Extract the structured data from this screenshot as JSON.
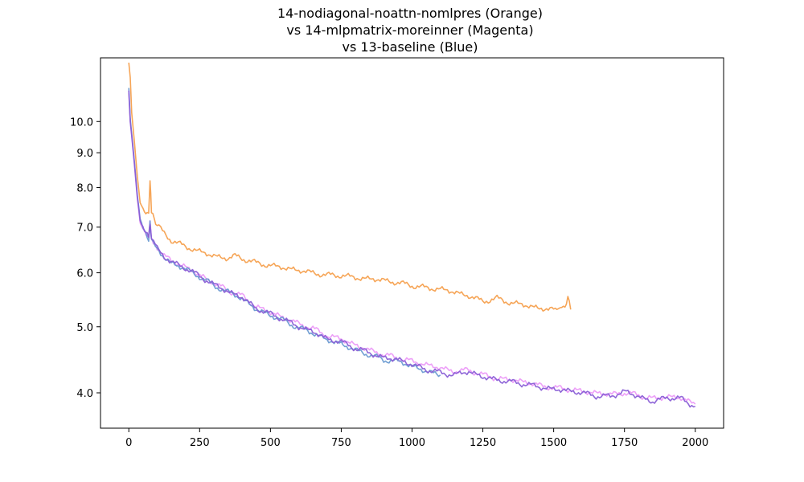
{
  "chart_data": {
    "type": "line",
    "title_lines": [
      "14-nodiagonal-noattn-nomlpres (Orange)",
      "vs 14-mlpmatrix-moreinner (Magenta)",
      "vs 13-baseline (Blue)"
    ],
    "xlabel": "",
    "ylabel": "",
    "xlim": [
      -100,
      2100
    ],
    "ylim": [
      3.55,
      12.4
    ],
    "yscale": "log",
    "grid": false,
    "x_ticks": [
      0,
      250,
      500,
      750,
      1000,
      1250,
      1500,
      1750,
      2000
    ],
    "y_ticks": [
      4.0,
      5.0,
      6.0,
      7.0,
      8.0,
      9.0,
      10.0
    ],
    "y_tick_labels": [
      "4.0",
      "5.0",
      "6.0",
      "7.0",
      "8.0",
      "9.0",
      "10.0"
    ],
    "series": [
      {
        "color": "#f59b45",
        "opacity": 0.9,
        "x": [
          0,
          5,
          10,
          20,
          30,
          40,
          50,
          60,
          70,
          75,
          80,
          90,
          100,
          125,
          150,
          200,
          250,
          300,
          350,
          375,
          400,
          425,
          450,
          500,
          550,
          600,
          650,
          700,
          750,
          800,
          850,
          900,
          950,
          1000,
          1050,
          1100,
          1150,
          1200,
          1250,
          1300,
          1350,
          1400,
          1450,
          1500,
          1540,
          1550,
          1560
        ],
        "y": [
          12.2,
          11.6,
          10.3,
          9.3,
          8.3,
          7.6,
          7.45,
          7.4,
          7.3,
          8.2,
          7.35,
          7.2,
          7.05,
          6.85,
          6.7,
          6.55,
          6.45,
          6.35,
          6.3,
          6.35,
          6.3,
          6.25,
          6.2,
          6.15,
          6.1,
          6.05,
          6.0,
          5.95,
          5.95,
          5.9,
          5.88,
          5.85,
          5.8,
          5.75,
          5.7,
          5.68,
          5.62,
          5.55,
          5.45,
          5.5,
          5.42,
          5.38,
          5.32,
          5.3,
          5.35,
          5.55,
          5.3
        ]
      },
      {
        "color": "#e678f5",
        "opacity": 0.7,
        "x": [
          0,
          5,
          10,
          20,
          30,
          40,
          50,
          60,
          70,
          75,
          80,
          100,
          125,
          150,
          200,
          250,
          300,
          350,
          375,
          400,
          425,
          450,
          500,
          550,
          600,
          650,
          700,
          750,
          800,
          850,
          900,
          950,
          1000,
          1050,
          1100,
          1150,
          1200,
          1250,
          1300,
          1350,
          1400,
          1450,
          1500,
          1550,
          1600,
          1650,
          1700,
          1750,
          1800,
          1850,
          1900,
          1950,
          2000
        ],
        "y": [
          11.0,
          10.0,
          9.5,
          8.6,
          7.7,
          7.1,
          6.95,
          6.85,
          6.8,
          7.1,
          6.75,
          6.55,
          6.35,
          6.25,
          6.12,
          5.95,
          5.8,
          5.65,
          5.6,
          5.55,
          5.45,
          5.35,
          5.25,
          5.15,
          5.05,
          4.97,
          4.85,
          4.8,
          4.7,
          4.62,
          4.55,
          4.5,
          4.45,
          4.4,
          4.35,
          4.3,
          4.32,
          4.25,
          4.2,
          4.18,
          4.15,
          4.1,
          4.07,
          4.05,
          4.02,
          4.0,
          3.98,
          4.0,
          3.97,
          3.92,
          3.95,
          3.93,
          3.85
        ]
      },
      {
        "color": "#5b8fcc",
        "opacity": 0.85,
        "x": [
          0,
          5,
          10,
          20,
          30,
          40,
          50,
          60,
          70,
          75,
          80,
          100,
          125,
          150,
          200,
          250,
          300,
          350,
          375,
          400,
          425,
          450,
          500,
          550,
          600,
          650,
          700,
          750,
          800,
          850,
          900,
          950,
          1000,
          1050,
          1100
        ],
        "y": [
          11.2,
          10.1,
          9.6,
          8.7,
          7.8,
          7.2,
          7.0,
          6.85,
          6.75,
          7.15,
          6.7,
          6.5,
          6.32,
          6.2,
          6.08,
          5.92,
          5.75,
          5.62,
          5.57,
          5.5,
          5.4,
          5.3,
          5.2,
          5.1,
          4.98,
          4.9,
          4.78,
          4.72,
          4.62,
          4.55,
          4.47,
          4.45,
          4.38,
          4.3,
          4.25
        ]
      },
      {
        "color": "#8a5fd6",
        "opacity": 0.95,
        "x": [
          0,
          5,
          10,
          20,
          30,
          40,
          50,
          60,
          70,
          75,
          80,
          100,
          125,
          150,
          200,
          250,
          300,
          350,
          375,
          400,
          425,
          450,
          500,
          550,
          600,
          650,
          700,
          750,
          800,
          850,
          900,
          950,
          1000,
          1050,
          1100,
          1150,
          1200,
          1250,
          1300,
          1350,
          1400,
          1450,
          1500,
          1550,
          1600,
          1650,
          1700,
          1750,
          1800,
          1850,
          1900,
          1950,
          2000
        ],
        "y": [
          11.1,
          10.0,
          9.55,
          8.65,
          7.75,
          7.15,
          6.97,
          6.85,
          6.78,
          7.12,
          6.72,
          6.52,
          6.33,
          6.22,
          6.1,
          5.93,
          5.77,
          5.63,
          5.58,
          5.52,
          5.42,
          5.32,
          5.22,
          5.12,
          5.0,
          4.92,
          4.8,
          4.75,
          4.65,
          4.58,
          4.5,
          4.48,
          4.4,
          4.33,
          4.28,
          4.25,
          4.3,
          4.22,
          4.18,
          4.15,
          4.12,
          4.08,
          4.05,
          4.03,
          4.0,
          3.96,
          3.95,
          4.02,
          3.95,
          3.88,
          3.94,
          3.92,
          3.82
        ]
      }
    ],
    "colors": {
      "orange": "#f59b45",
      "magenta": "#e678f5",
      "blue": "#5b8fcc",
      "overlap": "#8a5fd6"
    }
  }
}
